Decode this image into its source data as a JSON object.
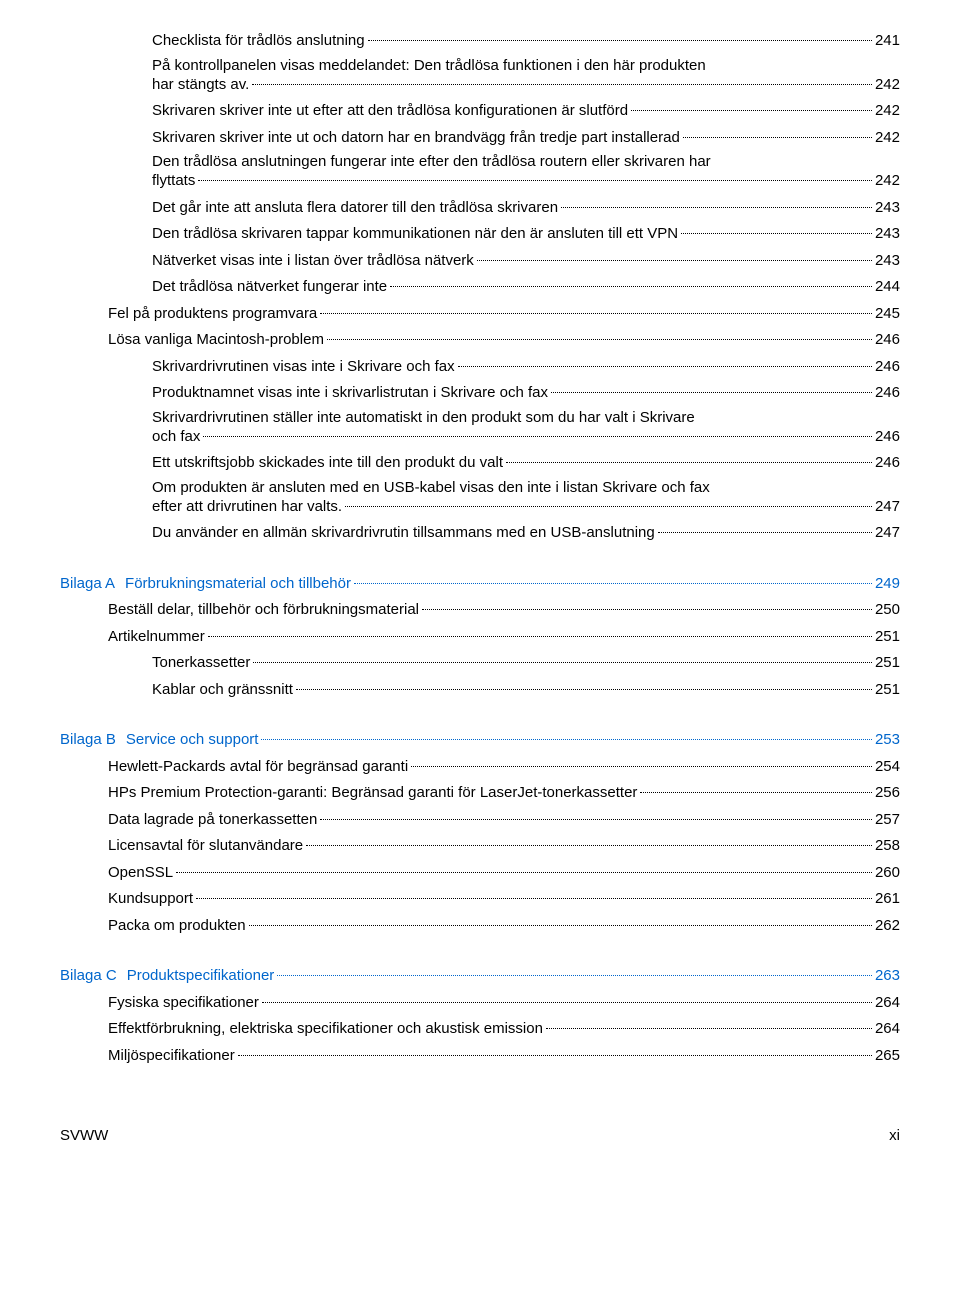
{
  "colors": {
    "text": "#000000",
    "link": "#0066cc",
    "background": "#ffffff"
  },
  "typography": {
    "font_family": "Arial, Helvetica, sans-serif",
    "font_size_pt": 11
  },
  "section1": {
    "entries": [
      {
        "level": 1,
        "label": "Checklista för trådlös anslutning",
        "page": "241"
      },
      {
        "level": 1,
        "multiline": true,
        "label_line1": "På kontrollpanelen visas meddelandet: Den trådlösa funktionen i den här produkten",
        "label_line2": "har stängts av.",
        "page": "242"
      },
      {
        "level": 1,
        "label": "Skrivaren skriver inte ut efter att den trådlösa konfigurationen är slutförd",
        "page": "242"
      },
      {
        "level": 1,
        "label": "Skrivaren skriver inte ut och datorn har en brandvägg från tredje part installerad",
        "page": "242"
      },
      {
        "level": 1,
        "multiline": true,
        "label_line1": "Den trådlösa anslutningen fungerar inte efter den trådlösa routern eller skrivaren har",
        "label_line2": "flyttats",
        "page": "242"
      },
      {
        "level": 1,
        "label": "Det går inte att ansluta flera datorer till den trådlösa skrivaren",
        "page": "243"
      },
      {
        "level": 1,
        "label": "Den trådlösa skrivaren tappar kommunikationen när den är ansluten till ett VPN",
        "page": "243"
      },
      {
        "level": 1,
        "label": "Nätverket visas inte i listan över trådlösa nätverk",
        "page": "243"
      },
      {
        "level": 1,
        "label": "Det trådlösa nätverket fungerar inte",
        "page": "244"
      },
      {
        "level": 2,
        "label": "Fel på produktens programvara",
        "page": "245"
      },
      {
        "level": 2,
        "label": "Lösa vanliga Macintosh-problem",
        "page": "246"
      },
      {
        "level": 1,
        "label": "Skrivardrivrutinen visas inte i Skrivare och fax",
        "page": "246"
      },
      {
        "level": 1,
        "label": "Produktnamnet visas inte i skrivarlistrutan i Skrivare och fax",
        "page": "246"
      },
      {
        "level": 1,
        "multiline": true,
        "label_line1": "Skrivardrivrutinen ställer inte automatiskt in den produkt som du har valt i Skrivare",
        "label_line2": "och fax",
        "page": "246"
      },
      {
        "level": 1,
        "label": "Ett utskriftsjobb skickades inte till den produkt du valt",
        "page": "246"
      },
      {
        "level": 1,
        "multiline": true,
        "label_line1": "Om produkten är ansluten med en USB-kabel visas den inte i listan Skrivare och fax",
        "label_line2": "efter att drivrutinen har valts.",
        "page": "247"
      },
      {
        "level": 1,
        "label": "Du använder en allmän skrivardrivrutin tillsammans med en USB-anslutning",
        "page": "247"
      }
    ]
  },
  "appendixA": {
    "prefix": "Bilaga A",
    "title": "Förbrukningsmaterial och tillbehör",
    "page": "249",
    "entries": [
      {
        "level": 2,
        "label": "Beställ delar, tillbehör och förbrukningsmaterial",
        "page": "250"
      },
      {
        "level": 2,
        "label": "Artikelnummer",
        "page": "251"
      },
      {
        "level": 1,
        "label": "Tonerkassetter",
        "page": "251"
      },
      {
        "level": 1,
        "label": "Kablar och gränssnitt",
        "page": "251"
      }
    ]
  },
  "appendixB": {
    "prefix": "Bilaga B",
    "title": "Service och support",
    "page": "253",
    "entries": [
      {
        "level": 2,
        "label": "Hewlett-Packards avtal för begränsad garanti",
        "page": "254"
      },
      {
        "level": 2,
        "label": "HPs Premium Protection-garanti: Begränsad garanti för LaserJet-tonerkassetter",
        "page": "256"
      },
      {
        "level": 2,
        "label": "Data lagrade på tonerkassetten",
        "page": "257"
      },
      {
        "level": 2,
        "label": "Licensavtal för slutanvändare",
        "page": "258"
      },
      {
        "level": 2,
        "label": "OpenSSL",
        "page": "260"
      },
      {
        "level": 2,
        "label": "Kundsupport",
        "page": "261"
      },
      {
        "level": 2,
        "label": "Packa om produkten",
        "page": "262"
      }
    ]
  },
  "appendixC": {
    "prefix": "Bilaga C",
    "title": "Produktspecifikationer",
    "page": "263",
    "entries": [
      {
        "level": 2,
        "label": "Fysiska specifikationer",
        "page": "264"
      },
      {
        "level": 2,
        "label": "Effektförbrukning, elektriska specifikationer och akustisk emission",
        "page": "264"
      },
      {
        "level": 2,
        "label": "Miljöspecifikationer",
        "page": "265"
      }
    ]
  },
  "footer": {
    "left": "SVWW",
    "right": "xi"
  }
}
